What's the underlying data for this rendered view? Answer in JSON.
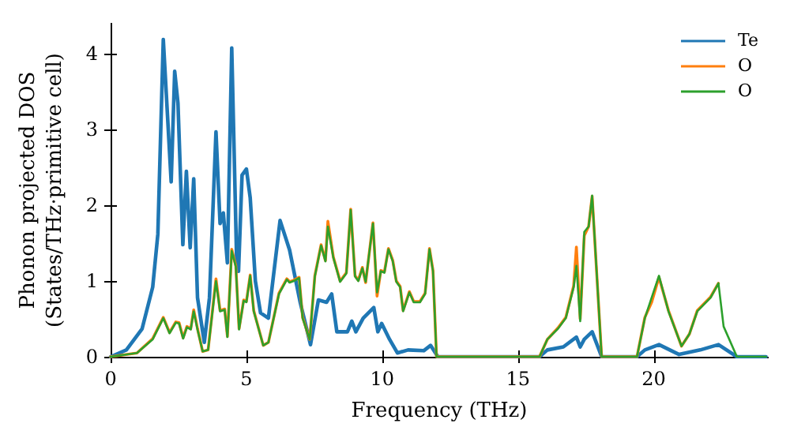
{
  "chart_data": {
    "type": "line",
    "xlabel": "Frequency (THz)",
    "ylabel": "Phonon projected DOS\n(States/THz·primitive cell)",
    "xlim": [
      0,
      24.2
    ],
    "ylim": [
      0,
      4.4
    ],
    "xticks": [
      0,
      5,
      10,
      15,
      20
    ],
    "yticks": [
      0,
      1,
      2,
      3,
      4
    ],
    "grid": false,
    "legend": "top right",
    "marker": "none",
    "line_style": "solid",
    "series": [
      {
        "name": "Te",
        "color": "#1f77b4",
        "x": [
          0,
          0.58,
          1.16,
          1.55,
          1.74,
          1.94,
          2.23,
          2.36,
          2.48,
          2.66,
          2.79,
          2.93,
          3.06,
          3.2,
          3.45,
          3.64,
          3.88,
          4.03,
          4.15,
          4.3,
          4.46,
          4.65,
          4.71,
          4.84,
          5.0,
          5.14,
          5.33,
          5.52,
          5.81,
          6.24,
          6.59,
          6.98,
          7.36,
          7.65,
          7.95,
          8.14,
          8.33,
          8.72,
          8.88,
          9.03,
          9.3,
          9.69,
          9.84,
          9.98,
          10.27,
          10.56,
          10.95,
          11.53,
          11.78,
          12.05,
          15.79,
          16.08,
          16.67,
          17.15,
          17.29,
          17.44,
          17.73,
          18.08,
          19.38,
          19.67,
          20.19,
          20.93,
          21.71,
          22.38,
          23.06,
          24.13
        ],
        "values": [
          0,
          0.09,
          0.37,
          0.92,
          1.62,
          4.19,
          2.31,
          3.77,
          3.35,
          1.48,
          2.45,
          1.44,
          2.35,
          0.78,
          0.19,
          0.78,
          2.97,
          1.76,
          1.9,
          1.24,
          4.08,
          1.13,
          1.13,
          2.4,
          2.48,
          2.1,
          1.0,
          0.58,
          0.51,
          1.8,
          1.41,
          0.72,
          0.16,
          0.75,
          0.72,
          0.83,
          0.33,
          0.33,
          0.47,
          0.33,
          0.51,
          0.65,
          0.33,
          0.44,
          0.23,
          0.05,
          0.09,
          0.08,
          0.15,
          0,
          0,
          0.09,
          0.13,
          0.26,
          0.13,
          0.23,
          0.33,
          0,
          0,
          0.09,
          0.16,
          0.03,
          0.09,
          0.16,
          0,
          0
        ]
      },
      {
        "name": "O",
        "color": "#ff7f0e",
        "x": [
          0,
          0.97,
          1.55,
          1.94,
          2.17,
          2.4,
          2.52,
          2.67,
          2.81,
          2.95,
          3.06,
          3.2,
          3.39,
          3.59,
          3.88,
          4.03,
          4.2,
          4.3,
          4.46,
          4.61,
          4.73,
          4.9,
          5.0,
          5.14,
          5.27,
          5.62,
          5.81,
          6.2,
          6.49,
          6.59,
          6.74,
          6.94,
          7.07,
          7.33,
          7.52,
          7.75,
          7.91,
          8.0,
          8.2,
          8.45,
          8.68,
          8.84,
          9.0,
          9.12,
          9.27,
          9.39,
          9.66,
          9.81,
          9.95,
          10.08,
          10.23,
          10.39,
          10.52,
          10.66,
          10.77,
          11.0,
          11.16,
          11.39,
          11.58,
          11.74,
          11.87,
          12.0,
          15.79,
          16.08,
          16.47,
          16.76,
          17.05,
          17.15,
          17.29,
          17.44,
          17.6,
          17.73,
          18.08,
          19.38,
          19.67,
          19.92,
          20.19,
          20.54,
          21.02,
          21.31,
          21.6,
          22.09,
          22.38
        ],
        "values": [
          0,
          0.05,
          0.24,
          0.52,
          0.32,
          0.46,
          0.45,
          0.25,
          0.4,
          0.37,
          0.62,
          0.37,
          0.07,
          0.09,
          1.03,
          0.61,
          0.63,
          0.27,
          1.42,
          1.2,
          0.37,
          0.75,
          0.73,
          1.08,
          0.61,
          0.15,
          0.19,
          0.84,
          1.03,
          0.99,
          1.01,
          1.05,
          0.52,
          0.23,
          1.07,
          1.48,
          1.27,
          1.79,
          1.32,
          1.0,
          1.11,
          1.95,
          1.07,
          1.01,
          1.18,
          0.98,
          1.77,
          0.8,
          1.14,
          1.12,
          1.43,
          1.27,
          1.0,
          0.93,
          0.61,
          0.86,
          0.73,
          0.73,
          0.84,
          1.43,
          1.14,
          0,
          0,
          0.23,
          0.38,
          0.52,
          0.94,
          1.45,
          0.5,
          1.6,
          1.72,
          2.12,
          0,
          0,
          0.52,
          0.72,
          1.05,
          0.61,
          0.14,
          0.3,
          0.61,
          0.79,
          0.97
        ]
      },
      {
        "name": "O",
        "color": "#2ca02c",
        "x": [
          0,
          0.97,
          1.55,
          1.94,
          2.17,
          2.4,
          2.52,
          2.67,
          2.81,
          2.95,
          3.06,
          3.2,
          3.39,
          3.59,
          3.88,
          4.03,
          4.2,
          4.3,
          4.46,
          4.61,
          4.73,
          4.9,
          5.0,
          5.14,
          5.27,
          5.62,
          5.81,
          6.2,
          6.49,
          6.59,
          6.74,
          6.94,
          7.07,
          7.33,
          7.52,
          7.75,
          7.91,
          8.0,
          8.2,
          8.45,
          8.68,
          8.84,
          9.0,
          9.12,
          9.27,
          9.39,
          9.66,
          9.81,
          9.95,
          10.08,
          10.23,
          10.39,
          10.52,
          10.66,
          10.77,
          11.0,
          11.16,
          11.39,
          11.58,
          11.74,
          11.87,
          12.0,
          15.79,
          16.08,
          16.47,
          16.76,
          17.05,
          17.15,
          17.29,
          17.44,
          17.6,
          17.73,
          18.08,
          19.38,
          19.67,
          19.92,
          20.19,
          20.54,
          21.02,
          21.31,
          21.6,
          22.09,
          22.38,
          22.57,
          23.06,
          24.13
        ],
        "values": [
          0,
          0.05,
          0.23,
          0.51,
          0.31,
          0.45,
          0.44,
          0.24,
          0.39,
          0.36,
          0.6,
          0.36,
          0.07,
          0.09,
          1.0,
          0.6,
          0.62,
          0.26,
          1.4,
          1.19,
          0.36,
          0.74,
          0.72,
          1.07,
          0.6,
          0.15,
          0.19,
          0.83,
          1.02,
          0.98,
          1.0,
          1.04,
          0.51,
          0.23,
          1.06,
          1.47,
          1.26,
          1.72,
          1.31,
          0.99,
          1.1,
          1.94,
          1.06,
          1.0,
          1.17,
          0.99,
          1.76,
          0.85,
          1.13,
          1.11,
          1.42,
          1.26,
          0.99,
          0.92,
          0.6,
          0.85,
          0.72,
          0.72,
          0.83,
          1.42,
          1.13,
          0,
          0,
          0.23,
          0.37,
          0.51,
          0.92,
          1.2,
          0.47,
          1.65,
          1.72,
          2.13,
          0,
          0,
          0.51,
          0.78,
          1.07,
          0.6,
          0.14,
          0.3,
          0.6,
          0.78,
          0.97,
          0.4,
          0,
          0
        ]
      }
    ]
  }
}
